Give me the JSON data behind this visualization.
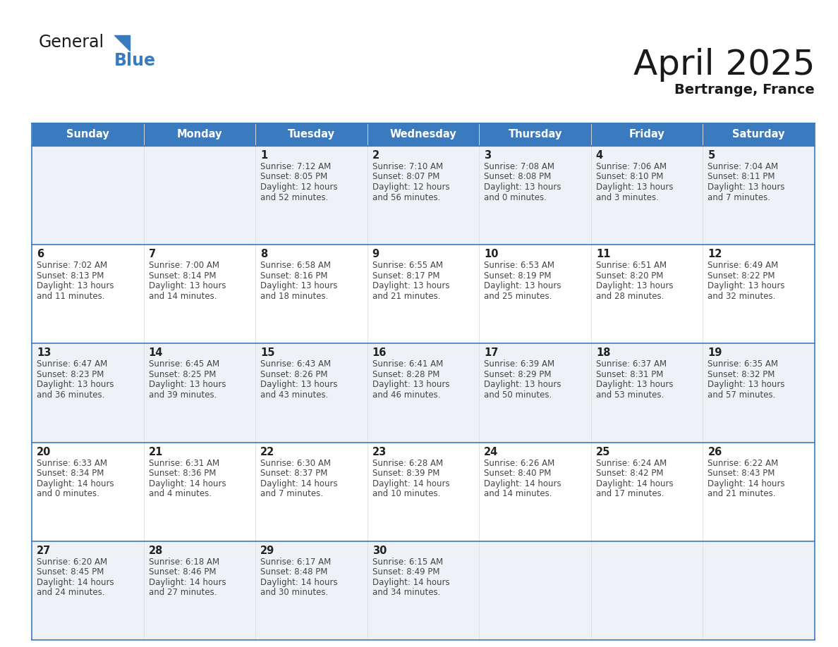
{
  "title": "April 2025",
  "subtitle": "Bertrange, France",
  "header_color": "#3a7abf",
  "header_text_color": "#ffffff",
  "cell_bg_even": "#eef2f7",
  "cell_bg_odd": "#ffffff",
  "border_color": "#3a7abf",
  "text_color": "#333333",
  "days_of_week": [
    "Sunday",
    "Monday",
    "Tuesday",
    "Wednesday",
    "Thursday",
    "Friday",
    "Saturday"
  ],
  "weeks": [
    [
      {
        "day": "",
        "info": ""
      },
      {
        "day": "",
        "info": ""
      },
      {
        "day": "1",
        "info": "Sunrise: 7:12 AM\nSunset: 8:05 PM\nDaylight: 12 hours\nand 52 minutes."
      },
      {
        "day": "2",
        "info": "Sunrise: 7:10 AM\nSunset: 8:07 PM\nDaylight: 12 hours\nand 56 minutes."
      },
      {
        "day": "3",
        "info": "Sunrise: 7:08 AM\nSunset: 8:08 PM\nDaylight: 13 hours\nand 0 minutes."
      },
      {
        "day": "4",
        "info": "Sunrise: 7:06 AM\nSunset: 8:10 PM\nDaylight: 13 hours\nand 3 minutes."
      },
      {
        "day": "5",
        "info": "Sunrise: 7:04 AM\nSunset: 8:11 PM\nDaylight: 13 hours\nand 7 minutes."
      }
    ],
    [
      {
        "day": "6",
        "info": "Sunrise: 7:02 AM\nSunset: 8:13 PM\nDaylight: 13 hours\nand 11 minutes."
      },
      {
        "day": "7",
        "info": "Sunrise: 7:00 AM\nSunset: 8:14 PM\nDaylight: 13 hours\nand 14 minutes."
      },
      {
        "day": "8",
        "info": "Sunrise: 6:58 AM\nSunset: 8:16 PM\nDaylight: 13 hours\nand 18 minutes."
      },
      {
        "day": "9",
        "info": "Sunrise: 6:55 AM\nSunset: 8:17 PM\nDaylight: 13 hours\nand 21 minutes."
      },
      {
        "day": "10",
        "info": "Sunrise: 6:53 AM\nSunset: 8:19 PM\nDaylight: 13 hours\nand 25 minutes."
      },
      {
        "day": "11",
        "info": "Sunrise: 6:51 AM\nSunset: 8:20 PM\nDaylight: 13 hours\nand 28 minutes."
      },
      {
        "day": "12",
        "info": "Sunrise: 6:49 AM\nSunset: 8:22 PM\nDaylight: 13 hours\nand 32 minutes."
      }
    ],
    [
      {
        "day": "13",
        "info": "Sunrise: 6:47 AM\nSunset: 8:23 PM\nDaylight: 13 hours\nand 36 minutes."
      },
      {
        "day": "14",
        "info": "Sunrise: 6:45 AM\nSunset: 8:25 PM\nDaylight: 13 hours\nand 39 minutes."
      },
      {
        "day": "15",
        "info": "Sunrise: 6:43 AM\nSunset: 8:26 PM\nDaylight: 13 hours\nand 43 minutes."
      },
      {
        "day": "16",
        "info": "Sunrise: 6:41 AM\nSunset: 8:28 PM\nDaylight: 13 hours\nand 46 minutes."
      },
      {
        "day": "17",
        "info": "Sunrise: 6:39 AM\nSunset: 8:29 PM\nDaylight: 13 hours\nand 50 minutes."
      },
      {
        "day": "18",
        "info": "Sunrise: 6:37 AM\nSunset: 8:31 PM\nDaylight: 13 hours\nand 53 minutes."
      },
      {
        "day": "19",
        "info": "Sunrise: 6:35 AM\nSunset: 8:32 PM\nDaylight: 13 hours\nand 57 minutes."
      }
    ],
    [
      {
        "day": "20",
        "info": "Sunrise: 6:33 AM\nSunset: 8:34 PM\nDaylight: 14 hours\nand 0 minutes."
      },
      {
        "day": "21",
        "info": "Sunrise: 6:31 AM\nSunset: 8:36 PM\nDaylight: 14 hours\nand 4 minutes."
      },
      {
        "day": "22",
        "info": "Sunrise: 6:30 AM\nSunset: 8:37 PM\nDaylight: 14 hours\nand 7 minutes."
      },
      {
        "day": "23",
        "info": "Sunrise: 6:28 AM\nSunset: 8:39 PM\nDaylight: 14 hours\nand 10 minutes."
      },
      {
        "day": "24",
        "info": "Sunrise: 6:26 AM\nSunset: 8:40 PM\nDaylight: 14 hours\nand 14 minutes."
      },
      {
        "day": "25",
        "info": "Sunrise: 6:24 AM\nSunset: 8:42 PM\nDaylight: 14 hours\nand 17 minutes."
      },
      {
        "day": "26",
        "info": "Sunrise: 6:22 AM\nSunset: 8:43 PM\nDaylight: 14 hours\nand 21 minutes."
      }
    ],
    [
      {
        "day": "27",
        "info": "Sunrise: 6:20 AM\nSunset: 8:45 PM\nDaylight: 14 hours\nand 24 minutes."
      },
      {
        "day": "28",
        "info": "Sunrise: 6:18 AM\nSunset: 8:46 PM\nDaylight: 14 hours\nand 27 minutes."
      },
      {
        "day": "29",
        "info": "Sunrise: 6:17 AM\nSunset: 8:48 PM\nDaylight: 14 hours\nand 30 minutes."
      },
      {
        "day": "30",
        "info": "Sunrise: 6:15 AM\nSunset: 8:49 PM\nDaylight: 14 hours\nand 34 minutes."
      },
      {
        "day": "",
        "info": ""
      },
      {
        "day": "",
        "info": ""
      },
      {
        "day": "",
        "info": ""
      }
    ]
  ]
}
